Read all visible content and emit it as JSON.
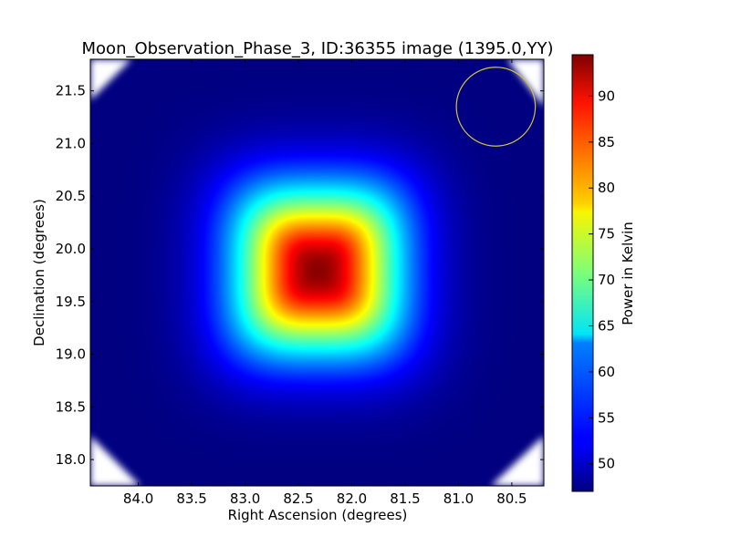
{
  "chart_data": {
    "type": "heatmap",
    "title": "Moon_Observation_Phase_3, ID:36355 image (1395.0,YY)",
    "xlabel": "Right Ascension (degrees)",
    "ylabel": "Declination (degrees)",
    "xlim": [
      84.45,
      80.2
    ],
    "ylim": [
      17.75,
      21.8
    ],
    "x_ticks": [
      84.0,
      83.5,
      83.0,
      82.5,
      82.0,
      81.5,
      81.0,
      80.5
    ],
    "x_tick_labels": [
      "84.0",
      "83.5",
      "83.0",
      "82.5",
      "82.0",
      "81.5",
      "81.0",
      "80.5"
    ],
    "y_ticks": [
      18.0,
      18.5,
      19.0,
      19.5,
      20.0,
      20.5,
      21.0,
      21.5
    ],
    "y_tick_labels": [
      "18.0",
      "18.5",
      "19.0",
      "19.5",
      "20.0",
      "20.5",
      "21.0",
      "21.5"
    ],
    "colorbar": {
      "label": "Power in Kelvin",
      "range": [
        47,
        94.5
      ],
      "ticks": [
        50,
        55,
        60,
        65,
        70,
        75,
        80,
        85,
        90
      ],
      "tick_labels": [
        "50",
        "55",
        "60",
        "65",
        "70",
        "75",
        "80",
        "85",
        "90"
      ],
      "colormap": "jet"
    },
    "source": {
      "center_ra": 82.32,
      "center_dec": 19.8,
      "peak_value": 94,
      "background_value": 47
    },
    "beam_circle": {
      "center_ra": 80.65,
      "center_dec": 21.35,
      "radius_deg": 0.37,
      "color": "#d4c43a"
    },
    "masked_corner_color": "#ffffff",
    "grid": false
  }
}
